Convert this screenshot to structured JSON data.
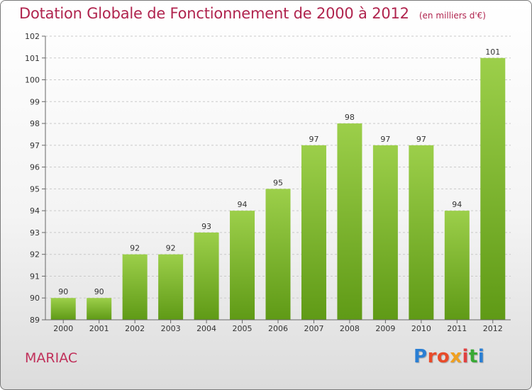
{
  "header": {
    "title": "Dotation Globale de Fonctionnement de 2000 à 2012",
    "unit": "(en milliers d'€)"
  },
  "footer": {
    "commune": "MARIAC",
    "logo_text": "Proxiti",
    "logo_colors": [
      "#2a7fd4",
      "#e84b2a",
      "#e84b2a",
      "#f0a020",
      "#e04040",
      "#39a935",
      "#2a7fd4"
    ]
  },
  "colors": {
    "bar_top": "#9ccf4a",
    "bar_bottom": "#5f9a16",
    "title": "#b0244e"
  },
  "chart_data": {
    "type": "bar",
    "categories": [
      "2000",
      "2001",
      "2002",
      "2003",
      "2004",
      "2005",
      "2006",
      "2007",
      "2008",
      "2009",
      "2010",
      "2011",
      "2012"
    ],
    "values": [
      90,
      90,
      92,
      92,
      93,
      94,
      95,
      97,
      98,
      97,
      97,
      94,
      101
    ],
    "ylim": [
      89,
      102
    ],
    "yticks": [
      89,
      90,
      91,
      92,
      93,
      94,
      95,
      96,
      97,
      98,
      99,
      100,
      101,
      102
    ],
    "grid": true,
    "xlabel": "",
    "ylabel": ""
  }
}
